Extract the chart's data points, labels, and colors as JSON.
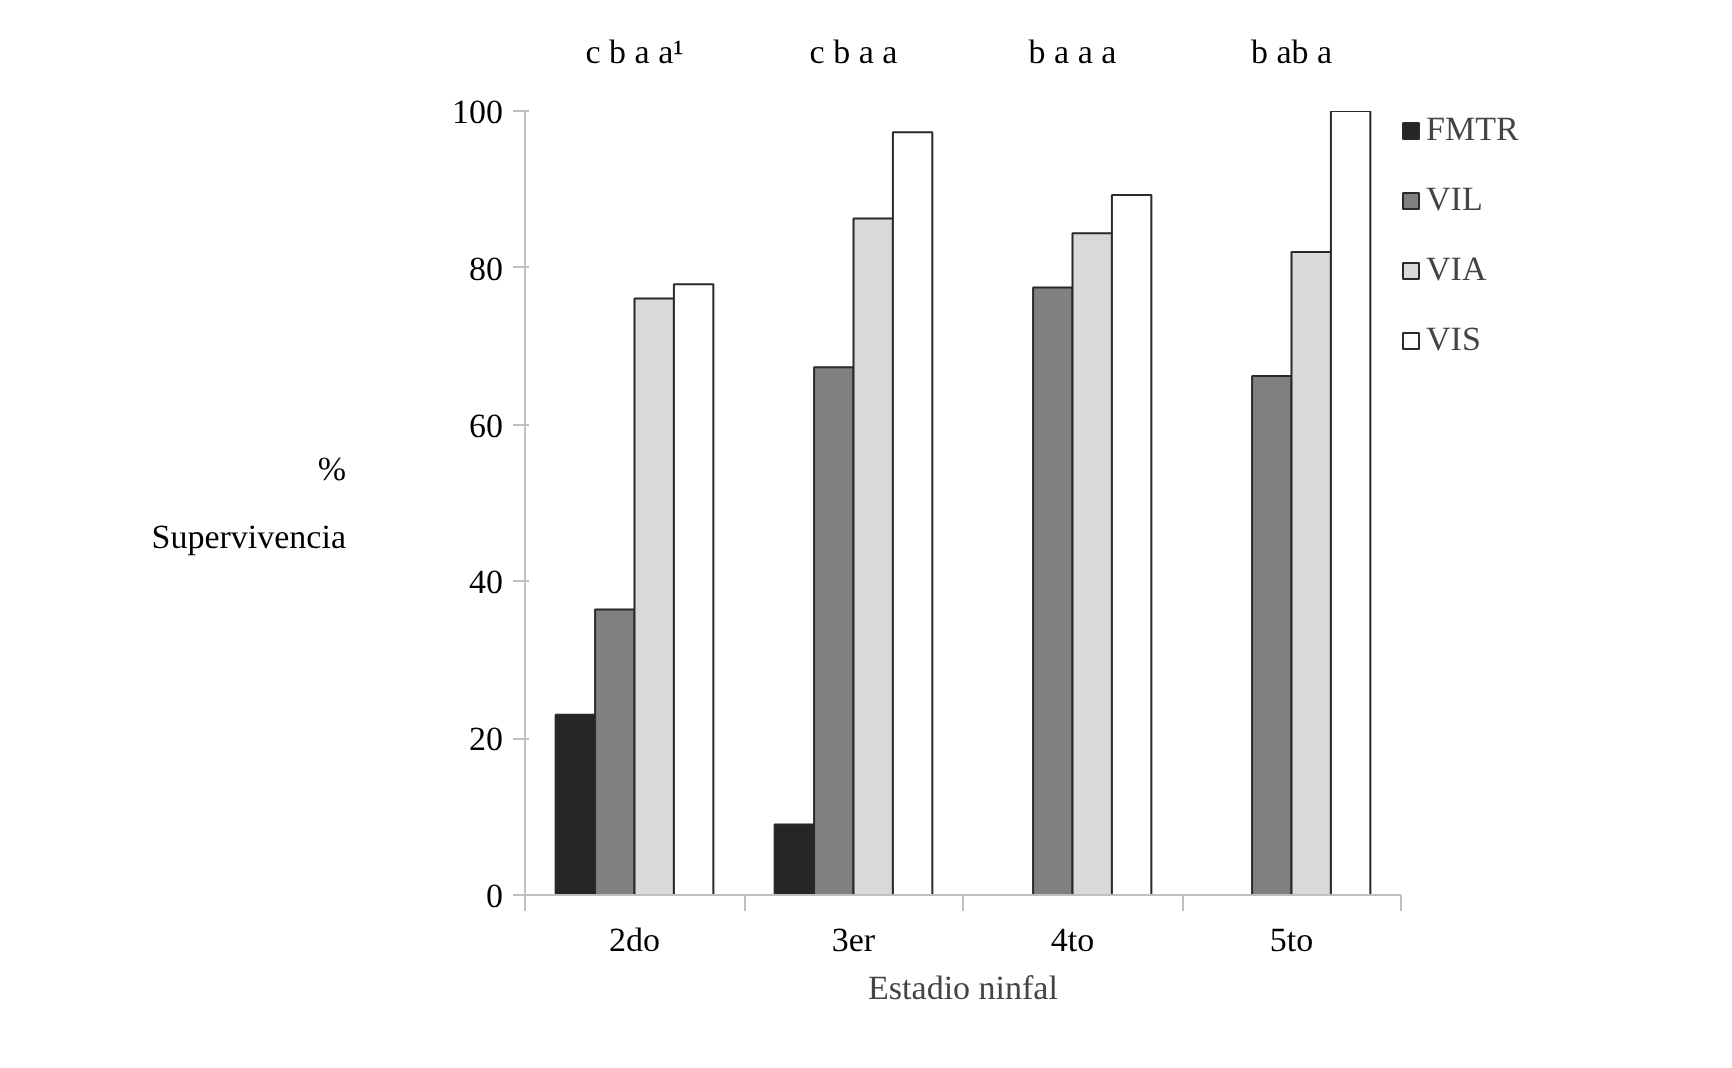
{
  "chart_data": {
    "type": "bar",
    "xlabel": "Estadio ninfal",
    "ylabel": "%\nSupervivencia",
    "categories": [
      "2do",
      "3er",
      "4to",
      "5to"
    ],
    "series": [
      {
        "name": "FMTR",
        "color": "#262626",
        "values": [
          23,
          9,
          0,
          0
        ]
      },
      {
        "name": "VIL",
        "color": "#808080",
        "values": [
          36.4,
          67.3,
          77.5,
          66.2
        ]
      },
      {
        "name": "VIA",
        "color": "#d9d9d9",
        "values": [
          76.1,
          86.3,
          84.4,
          82
        ]
      },
      {
        "name": "VIS",
        "color": "#ffffff",
        "values": [
          77.9,
          97.3,
          89.3,
          100
        ]
      }
    ],
    "ylim": [
      0,
      100
    ],
    "yticks": [
      0,
      20,
      40,
      60,
      80,
      100
    ],
    "grid": false,
    "legend": "right",
    "annotations": [
      "c b a a¹",
      "c b a a",
      "b a a a",
      "b ab a"
    ]
  }
}
